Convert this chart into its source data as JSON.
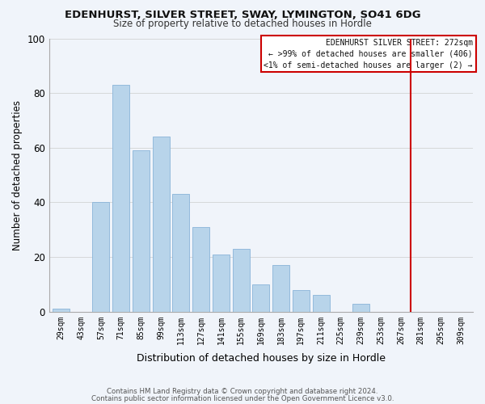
{
  "title": "EDENHURST, SILVER STREET, SWAY, LYMINGTON, SO41 6DG",
  "subtitle": "Size of property relative to detached houses in Hordle",
  "xlabel": "Distribution of detached houses by size in Hordle",
  "ylabel": "Number of detached properties",
  "bar_color": "#b8d4ea",
  "bar_edge_color": "#8ab4d8",
  "categories": [
    "29sqm",
    "43sqm",
    "57sqm",
    "71sqm",
    "85sqm",
    "99sqm",
    "113sqm",
    "127sqm",
    "141sqm",
    "155sqm",
    "169sqm",
    "183sqm",
    "197sqm",
    "211sqm",
    "225sqm",
    "239sqm",
    "253sqm",
    "267sqm",
    "281sqm",
    "295sqm",
    "309sqm"
  ],
  "values": [
    1,
    0,
    40,
    83,
    59,
    64,
    43,
    31,
    21,
    23,
    10,
    17,
    8,
    6,
    0,
    3,
    0,
    0,
    0,
    0,
    0
  ],
  "ylim": [
    0,
    100
  ],
  "yticks": [
    0,
    20,
    40,
    60,
    80,
    100
  ],
  "vline_color": "#cc0000",
  "legend_title": "EDENHURST SILVER STREET: 272sqm",
  "legend_line1": "← >99% of detached houses are smaller (406)",
  "legend_line2": "<1% of semi-detached houses are larger (2) →",
  "legend_box_color": "#cc0000",
  "footnote1": "Contains HM Land Registry data © Crown copyright and database right 2024.",
  "footnote2": "Contains public sector information licensed under the Open Government Licence v3.0.",
  "background_color": "#f0f4fa"
}
